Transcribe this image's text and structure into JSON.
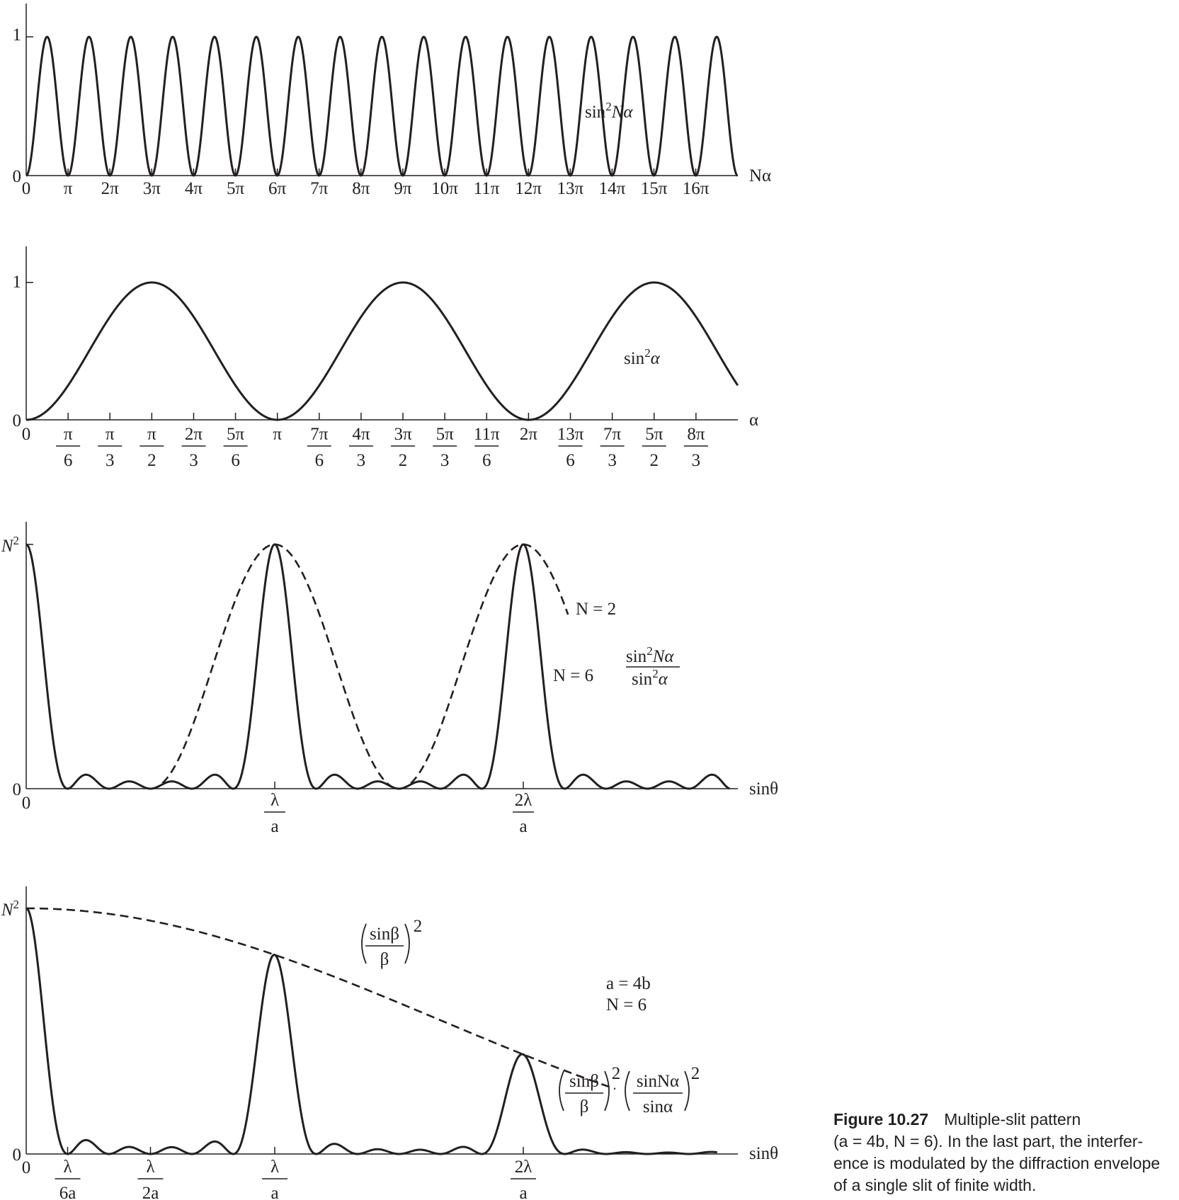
{
  "figure": {
    "number": "Figure 10.27",
    "caption_lines": [
      "Multiple-slit pattern",
      "(a = 4b, N = 6). In the last part, the interfer-",
      "ence is modulated by the diffraction envelope",
      "of a single slit of finite width."
    ]
  },
  "chart_data": [
    {
      "type": "line",
      "function": "sin^2(N alpha)",
      "series": [
        {
          "name": "sin²Nα",
          "style": "solid"
        }
      ],
      "xlabel": "Nα",
      "ylabel": "",
      "xlim": [
        0,
        17
      ],
      "x_unit": "π",
      "ylim": [
        0,
        1
      ],
      "y_ticks": [
        "0",
        "1"
      ],
      "x_ticks": [
        "0",
        "π",
        "2π",
        "3π",
        "4π",
        "5π",
        "6π",
        "7π",
        "8π",
        "9π",
        "10π",
        "11π",
        "12π",
        "13π",
        "14π",
        "15π",
        "16π"
      ],
      "annotations": [
        "sin²Nα"
      ],
      "grid": false
    },
    {
      "type": "line",
      "function": "sin^2(alpha)",
      "series": [
        {
          "name": "sin²α",
          "style": "solid"
        }
      ],
      "xlabel": "α",
      "ylabel": "",
      "xlim": [
        0,
        2.833
      ],
      "x_unit": "π",
      "ylim": [
        0,
        1
      ],
      "y_ticks": [
        "0",
        "1"
      ],
      "x_ticks": [
        {
          "num": "0",
          "den": "",
          "value": 0
        },
        {
          "num": "π",
          "den": "6",
          "value": 0.1667
        },
        {
          "num": "π",
          "den": "3",
          "value": 0.3333
        },
        {
          "num": "π",
          "den": "2",
          "value": 0.5
        },
        {
          "num": "2π",
          "den": "3",
          "value": 0.6667
        },
        {
          "num": "5π",
          "den": "6",
          "value": 0.8333
        },
        {
          "num": "π",
          "den": "",
          "value": 1
        },
        {
          "num": "7π",
          "den": "6",
          "value": 1.1667
        },
        {
          "num": "4π",
          "den": "3",
          "value": 1.3333
        },
        {
          "num": "3π",
          "den": "2",
          "value": 1.5
        },
        {
          "num": "5π",
          "den": "3",
          "value": 1.6667
        },
        {
          "num": "11π",
          "den": "6",
          "value": 1.8333
        },
        {
          "num": "2π",
          "den": "",
          "value": 2
        },
        {
          "num": "13π",
          "den": "6",
          "value": 2.1667
        },
        {
          "num": "7π",
          "den": "3",
          "value": 2.3333
        },
        {
          "num": "5π",
          "den": "2",
          "value": 2.5
        },
        {
          "num": "8π",
          "den": "3",
          "value": 2.6667
        }
      ],
      "annotations": [
        "sin²α"
      ],
      "grid": false
    },
    {
      "type": "line",
      "function": "sin^2(N alpha)/sin^2(alpha)",
      "series": [
        {
          "name": "N = 2",
          "N": 2,
          "style": "dashed",
          "x_range_alpha_pi": [
            0.5,
            2.18
          ]
        },
        {
          "name": "N = 6",
          "N": 6,
          "style": "solid",
          "x_range_alpha_pi": [
            0,
            2.83
          ]
        }
      ],
      "xlabel": "sinθ",
      "ylabel": "",
      "y_ticks": [
        "0",
        "N²"
      ],
      "x_ticks": [
        {
          "num": "0",
          "den": "",
          "alpha_pi": 0
        },
        {
          "num": "λ",
          "den": "a",
          "alpha_pi": 1
        },
        {
          "num": "2λ",
          "den": "a",
          "alpha_pi": 2
        }
      ],
      "annotations": [
        "N = 2",
        "N = 6",
        "sin²Nα",
        "sin²α"
      ],
      "grid": false
    },
    {
      "type": "line",
      "function": "(sin beta/beta)^2 (sin N alpha/sin alpha)^2",
      "a_over_b": 4,
      "N": 6,
      "series": [
        {
          "name": "(sinβ/β)²",
          "style": "dashed",
          "x_range_alpha_pi": [
            0,
            2.37
          ]
        },
        {
          "name": "(sinβ/β)²(sinNα/sinα)²",
          "style": "solid",
          "x_range_alpha_pi": [
            0,
            2.78
          ]
        }
      ],
      "xlabel": "sinθ",
      "ylabel": "",
      "y_ticks": [
        "0",
        "N²"
      ],
      "x_ticks": [
        {
          "num": "0",
          "den": "",
          "alpha_pi": 0
        },
        {
          "num": "λ",
          "den": "6a",
          "alpha_pi": 0.1667
        },
        {
          "num": "λ",
          "den": "2a",
          "alpha_pi": 0.5
        },
        {
          "num": "λ",
          "den": "a",
          "alpha_pi": 1
        },
        {
          "num": "2λ",
          "den": "a",
          "alpha_pi": 2
        }
      ],
      "annotations": [
        "a = 4b",
        "N = 6"
      ],
      "grid": false
    }
  ],
  "labels": {
    "p1_curve": [
      "sin",
      "2",
      "Nα"
    ],
    "p2_curve": [
      "sin",
      "2",
      "α"
    ],
    "p3_n2": "N = 2",
    "p3_n6": "N = 6",
    "p3_frac_num": [
      "sin",
      "2",
      "Nα"
    ],
    "p3_frac_den": [
      "sin",
      "2",
      "α"
    ],
    "p4_env_num": "sinβ",
    "p4_env_den": "β",
    "p4_sq": "2",
    "p4_params": [
      "a = 4b",
      "N = 6"
    ],
    "p4_prod_num1": "sinβ",
    "p4_prod_den1": "β",
    "p4_prod_num2": "sinNα",
    "p4_prod_den2": "sinα"
  }
}
